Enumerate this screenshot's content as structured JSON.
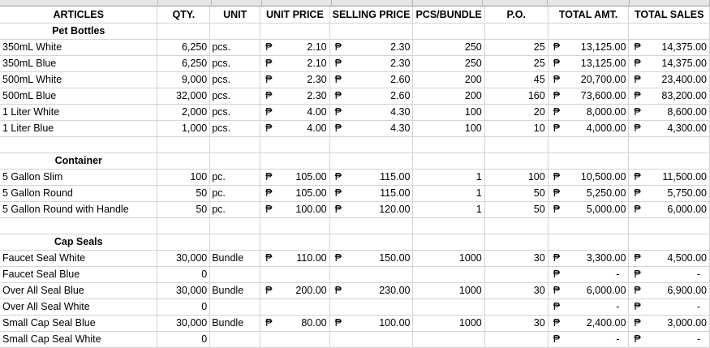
{
  "currency_symbol": "₱",
  "headers": [
    "ARTICLES",
    "QTY.",
    "UNIT",
    "UNIT PRICE",
    "SELLING PRICE",
    "PCS/BUNDLE",
    "P.O.",
    "TOTAL AMT.",
    "TOTAL SALES"
  ],
  "sections": [
    {
      "title": "Pet Bottles",
      "rows": [
        {
          "article": "350mL White",
          "qty": "6,250",
          "unit": "pcs.",
          "unit_price": "2.10",
          "selling_price": "2.30",
          "pcs_bundle": "250",
          "po": "25",
          "total_amt": "13,125.00",
          "total_sales": "14,375.00"
        },
        {
          "article": "350mL Blue",
          "qty": "6,250",
          "unit": "pcs.",
          "unit_price": "2.10",
          "selling_price": "2.30",
          "pcs_bundle": "250",
          "po": "25",
          "total_amt": "13,125.00",
          "total_sales": "14,375.00"
        },
        {
          "article": "500mL White",
          "qty": "9,000",
          "unit": "pcs.",
          "unit_price": "2.30",
          "selling_price": "2.60",
          "pcs_bundle": "200",
          "po": "45",
          "total_amt": "20,700.00",
          "total_sales": "23,400.00"
        },
        {
          "article": "500mL Blue",
          "qty": "32,000",
          "unit": "pcs.",
          "unit_price": "2.30",
          "selling_price": "2.60",
          "pcs_bundle": "200",
          "po": "160",
          "total_amt": "73,600.00",
          "total_sales": "83,200.00"
        },
        {
          "article": "1 Liter White",
          "qty": "2,000",
          "unit": "pcs.",
          "unit_price": "4.00",
          "selling_price": "4.30",
          "pcs_bundle": "100",
          "po": "20",
          "total_amt": "8,000.00",
          "total_sales": "8,600.00"
        },
        {
          "article": "1 Liter Blue",
          "qty": "1,000",
          "unit": "pcs.",
          "unit_price": "4.00",
          "selling_price": "4.30",
          "pcs_bundle": "100",
          "po": "10",
          "total_amt": "4,000.00",
          "total_sales": "4,300.00"
        }
      ]
    },
    {
      "title": "Container",
      "rows": [
        {
          "article": "5 Gallon Slim",
          "qty": "100",
          "unit": "pc.",
          "unit_price": "105.00",
          "selling_price": "115.00",
          "pcs_bundle": "1",
          "po": "100",
          "total_amt": "10,500.00",
          "total_sales": "11,500.00"
        },
        {
          "article": "5 Gallon Round",
          "qty": "50",
          "unit": "pc.",
          "unit_price": "105.00",
          "selling_price": "115.00",
          "pcs_bundle": "1",
          "po": "50",
          "total_amt": "5,250.00",
          "total_sales": "5,750.00"
        },
        {
          "article": "5 Gallon Round with Handle",
          "qty": "50",
          "unit": "pc.",
          "unit_price": "100.00",
          "selling_price": "120.00",
          "pcs_bundle": "1",
          "po": "50",
          "total_amt": "5,000.00",
          "total_sales": "6,000.00"
        }
      ]
    },
    {
      "title": "Cap Seals",
      "rows": [
        {
          "article": "Faucet Seal White",
          "qty": "30,000",
          "unit": "Bundle",
          "unit_price": "110.00",
          "selling_price": "150.00",
          "pcs_bundle": "1000",
          "po": "30",
          "total_amt": "3,300.00",
          "total_sales": "4,500.00"
        },
        {
          "article": "Faucet Seal Blue",
          "qty": "0",
          "unit": "",
          "unit_price": "",
          "selling_price": "",
          "pcs_bundle": "",
          "po": "",
          "total_amt": "-",
          "total_sales": "-"
        },
        {
          "article": "Over All Seal Blue",
          "qty": "30,000",
          "unit": "Bundle",
          "unit_price": "200.00",
          "selling_price": "230.00",
          "pcs_bundle": "1000",
          "po": "30",
          "total_amt": "6,000.00",
          "total_sales": "6,900.00"
        },
        {
          "article": "Over All Seal White",
          "qty": "0",
          "unit": "",
          "unit_price": "",
          "selling_price": "",
          "pcs_bundle": "",
          "po": "",
          "total_amt": "-",
          "total_sales": "-"
        },
        {
          "article": "Small Cap Seal Blue",
          "qty": "30,000",
          "unit": "Bundle",
          "unit_price": "80.00",
          "selling_price": "100.00",
          "pcs_bundle": "1000",
          "po": "30",
          "total_amt": "2,400.00",
          "total_sales": "3,000.00"
        },
        {
          "article": "Small Cap Seal White",
          "qty": "0",
          "unit": "",
          "unit_price": "",
          "selling_price": "",
          "pcs_bundle": "",
          "po": "",
          "total_amt": "-",
          "total_sales": "-"
        }
      ]
    }
  ]
}
